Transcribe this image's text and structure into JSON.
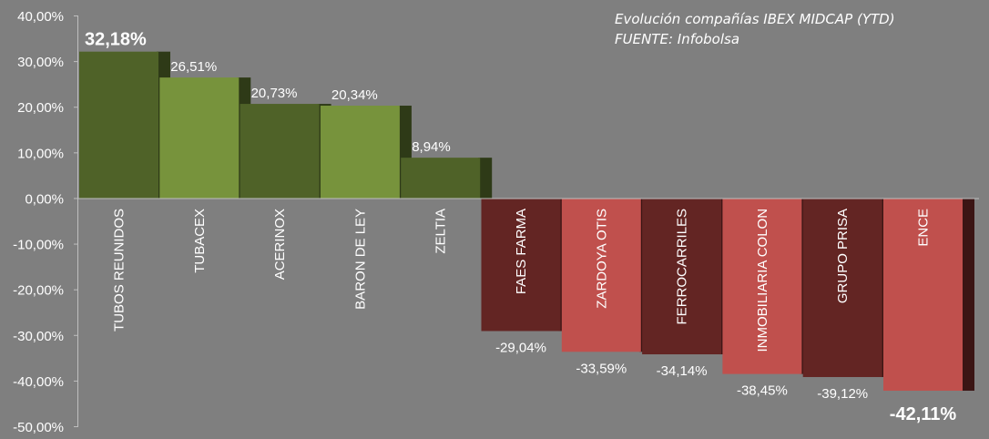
{
  "chart_data": {
    "type": "bar",
    "title": "Evolución compañías IBEX MIDCAP (YTD)",
    "source": "FUENTE: Infobolsa",
    "xlabel": "",
    "ylabel": "",
    "ylim": [
      -50,
      40
    ],
    "yticks": [
      "40,00%",
      "30,00%",
      "20,00%",
      "10,00%",
      "0,00%",
      "-10,00%",
      "-20,00%",
      "-30,00%",
      "-40,00%",
      "-50,00%"
    ],
    "ytick_values": [
      40,
      30,
      20,
      10,
      0,
      -10,
      -20,
      -30,
      -40,
      -50
    ],
    "grid": false,
    "categories": [
      "TUBOS REUNIDOS",
      "TUBACEX",
      "ACERINOX",
      "BARON DE LEY",
      "ZELTIA",
      "FAES FARMA",
      "ZARDOYA OTIS",
      "FERROCARRILES",
      "INMOBILIARIA COLON",
      "GRUPO PRISA",
      "ENCE"
    ],
    "values": [
      32.18,
      26.51,
      20.73,
      20.34,
      8.94,
      -29.04,
      -33.59,
      -34.14,
      -38.45,
      -39.12,
      -42.11
    ],
    "data_labels": [
      "32,18%",
      "26,51%",
      "20,73%",
      "20,34%",
      "8,94%",
      "-29,04%",
      "-33,59%",
      "-34,14%",
      "-38,45%",
      "-39,12%",
      "-42,11%"
    ],
    "colors": {
      "background": "#7f7f7f",
      "positive_dark": "#4f6228",
      "positive_light": "#77933c",
      "positive_side": "#2e3a17",
      "negative_light": "#c0504d",
      "negative_dark": "#632523",
      "negative_side": "#3b1514",
      "text": "#ffffff"
    }
  }
}
